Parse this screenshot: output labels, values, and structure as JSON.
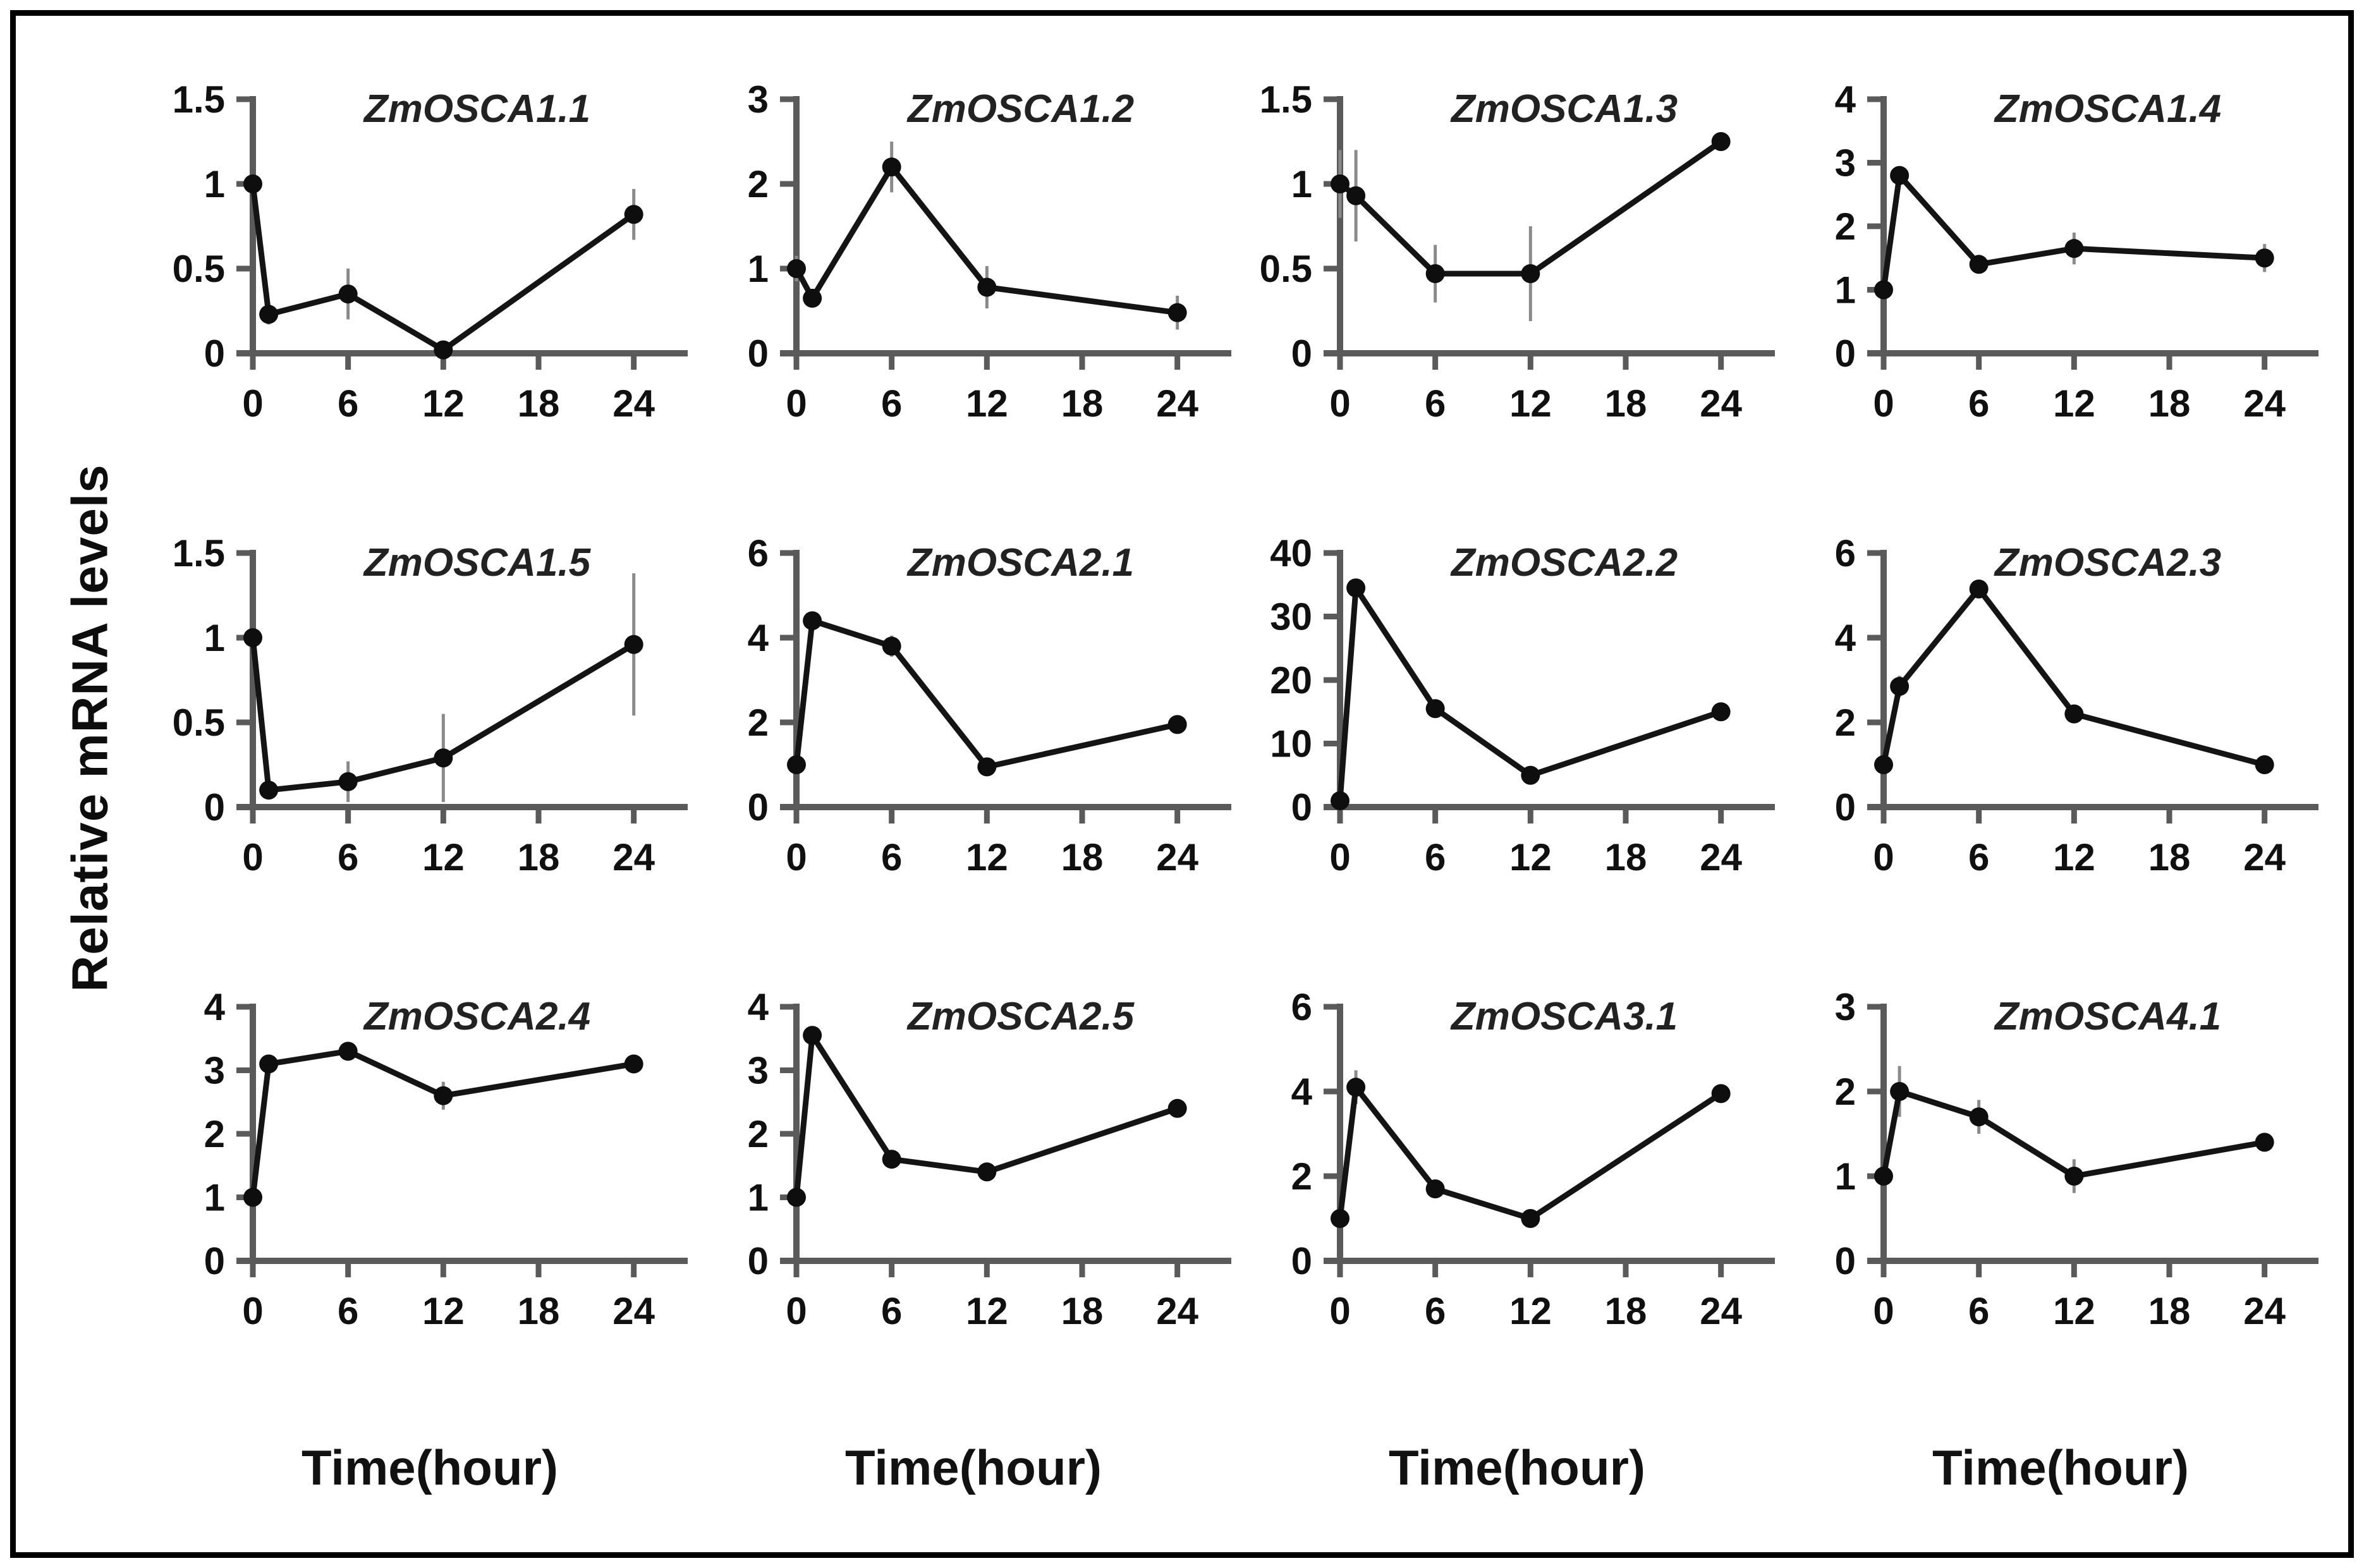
{
  "figure": {
    "ylabel": "Relative mRNA levels",
    "xlabel": "Time(hour)"
  },
  "style": {
    "axis_color": "#5a5a5a",
    "line_color": "#141414",
    "marker_color": "#0e0e0e",
    "error_color": "#8a8a8a",
    "background": "#ffffff",
    "frame_border": "#000000"
  },
  "chart_data": [
    {
      "type": "line",
      "title": "ZmOSCA1.1",
      "xlabel": "Time(hour)",
      "ylabel": "Relative mRNA levels",
      "x": [
        0,
        1,
        6,
        12,
        24
      ],
      "values": [
        1.0,
        0.23,
        0.35,
        0.02,
        0.82
      ],
      "errors": [
        0.04,
        0.06,
        0.15,
        0.02,
        0.15
      ],
      "x_ticks": [
        0,
        6,
        12,
        18,
        24
      ],
      "xlim": [
        0,
        27
      ],
      "yticks": [
        0,
        0.5,
        1,
        1.5
      ],
      "ylim": [
        0,
        1.5
      ],
      "grid": false,
      "legend": false
    },
    {
      "type": "line",
      "title": "ZmOSCA1.2",
      "xlabel": "Time(hour)",
      "ylabel": "Relative mRNA levels",
      "x": [
        0,
        1,
        6,
        12,
        24
      ],
      "values": [
        1.0,
        0.65,
        2.2,
        0.78,
        0.48
      ],
      "errors": [
        0.15,
        0.1,
        0.3,
        0.25,
        0.2
      ],
      "x_ticks": [
        0,
        6,
        12,
        18,
        24
      ],
      "xlim": [
        0,
        27
      ],
      "yticks": [
        0,
        1,
        2,
        3
      ],
      "ylim": [
        0,
        3
      ],
      "grid": false,
      "legend": false
    },
    {
      "type": "line",
      "title": "ZmOSCA1.3",
      "xlabel": "Time(hour)",
      "ylabel": "Relative mRNA levels",
      "x": [
        0,
        1,
        6,
        12,
        24
      ],
      "values": [
        1.0,
        0.93,
        0.47,
        0.47,
        1.25
      ],
      "errors": [
        0.2,
        0.27,
        0.17,
        0.28,
        0.05
      ],
      "x_ticks": [
        0,
        6,
        12,
        18,
        24
      ],
      "xlim": [
        0,
        27
      ],
      "yticks": [
        0,
        0.5,
        1,
        1.5
      ],
      "ylim": [
        0,
        1.5
      ],
      "grid": false,
      "legend": false
    },
    {
      "type": "line",
      "title": "ZmOSCA1.4",
      "xlabel": "Time(hour)",
      "ylabel": "Relative mRNA levels",
      "x": [
        0,
        1,
        6,
        12,
        24
      ],
      "values": [
        1.0,
        2.8,
        1.4,
        1.65,
        1.5
      ],
      "errors": [
        0.05,
        0.1,
        0.12,
        0.25,
        0.22
      ],
      "x_ticks": [
        0,
        6,
        12,
        18,
        24
      ],
      "xlim": [
        0,
        27
      ],
      "yticks": [
        0,
        1,
        2,
        3,
        4
      ],
      "ylim": [
        0,
        4
      ],
      "grid": false,
      "legend": false
    },
    {
      "type": "line",
      "title": "ZmOSCA1.5",
      "xlabel": "Time(hour)",
      "ylabel": "Relative mRNA levels",
      "x": [
        0,
        1,
        6,
        12,
        24
      ],
      "values": [
        1.0,
        0.1,
        0.15,
        0.29,
        0.96
      ],
      "errors": [
        0.03,
        0.05,
        0.12,
        0.26,
        0.42
      ],
      "x_ticks": [
        0,
        6,
        12,
        18,
        24
      ],
      "xlim": [
        0,
        27
      ],
      "yticks": [
        0,
        0.5,
        1,
        1.5
      ],
      "ylim": [
        0,
        1.5
      ],
      "grid": false,
      "legend": false
    },
    {
      "type": "line",
      "title": "ZmOSCA2.1",
      "xlabel": "Time(hour)",
      "ylabel": "Relative mRNA levels",
      "x": [
        0,
        1,
        6,
        12,
        24
      ],
      "values": [
        1.0,
        4.4,
        3.8,
        0.95,
        1.95
      ],
      "errors": [
        0.05,
        0.15,
        0.25,
        0.1,
        0.1
      ],
      "x_ticks": [
        0,
        6,
        12,
        18,
        24
      ],
      "xlim": [
        0,
        27
      ],
      "yticks": [
        0,
        2,
        4,
        6
      ],
      "ylim": [
        0,
        6
      ],
      "grid": false,
      "legend": false
    },
    {
      "type": "line",
      "title": "ZmOSCA2.2",
      "xlabel": "Time(hour)",
      "ylabel": "Relative mRNA levels",
      "x": [
        0,
        1,
        6,
        12,
        24
      ],
      "values": [
        1.0,
        34.5,
        15.5,
        5.0,
        15.0
      ],
      "errors": [
        0.5,
        1.2,
        1.0,
        0.8,
        0.8
      ],
      "x_ticks": [
        0,
        6,
        12,
        18,
        24
      ],
      "xlim": [
        0,
        27
      ],
      "yticks": [
        0,
        10,
        20,
        30,
        40
      ],
      "ylim": [
        0,
        40
      ],
      "grid": false,
      "legend": false
    },
    {
      "type": "line",
      "title": "ZmOSCA2.3",
      "xlabel": "Time(hour)",
      "ylabel": "Relative mRNA levels",
      "x": [
        0,
        1,
        6,
        12,
        24
      ],
      "values": [
        1.0,
        2.85,
        5.15,
        2.2,
        1.0
      ],
      "errors": [
        0.2,
        0.25,
        0.1,
        0.12,
        0.12
      ],
      "x_ticks": [
        0,
        6,
        12,
        18,
        24
      ],
      "xlim": [
        0,
        27
      ],
      "yticks": [
        0,
        2,
        4,
        6
      ],
      "ylim": [
        0,
        6
      ],
      "grid": false,
      "legend": false
    },
    {
      "type": "line",
      "title": "ZmOSCA2.4",
      "xlabel": "Time(hour)",
      "ylabel": "Relative mRNA levels",
      "x": [
        0,
        1,
        6,
        12,
        24
      ],
      "values": [
        1.0,
        3.1,
        3.3,
        2.6,
        3.1
      ],
      "errors": [
        0.08,
        0.1,
        0.12,
        0.22,
        0.08
      ],
      "x_ticks": [
        0,
        6,
        12,
        18,
        24
      ],
      "xlim": [
        0,
        27
      ],
      "yticks": [
        0,
        1,
        2,
        3,
        4
      ],
      "ylim": [
        0,
        4
      ],
      "grid": false,
      "legend": false
    },
    {
      "type": "line",
      "title": "ZmOSCA2.5",
      "xlabel": "Time(hour)",
      "ylabel": "Relative mRNA levels",
      "x": [
        0,
        1,
        6,
        12,
        24
      ],
      "values": [
        1.0,
        3.55,
        1.6,
        1.4,
        2.4
      ],
      "errors": [
        0.08,
        0.12,
        0.1,
        0.08,
        0.1
      ],
      "x_ticks": [
        0,
        6,
        12,
        18,
        24
      ],
      "xlim": [
        0,
        27
      ],
      "yticks": [
        0,
        1,
        2,
        3,
        4
      ],
      "ylim": [
        0,
        4
      ],
      "grid": false,
      "legend": false
    },
    {
      "type": "line",
      "title": "ZmOSCA3.1",
      "xlabel": "Time(hour)",
      "ylabel": "Relative mRNA levels",
      "x": [
        0,
        1,
        6,
        12,
        24
      ],
      "values": [
        1.0,
        4.1,
        1.7,
        1.0,
        3.95
      ],
      "errors": [
        0.1,
        0.4,
        0.18,
        0.08,
        0.1
      ],
      "x_ticks": [
        0,
        6,
        12,
        18,
        24
      ],
      "xlim": [
        0,
        27
      ],
      "yticks": [
        0,
        2,
        4,
        6
      ],
      "ylim": [
        0,
        6
      ],
      "grid": false,
      "legend": false
    },
    {
      "type": "line",
      "title": "ZmOSCA4.1",
      "xlabel": "Time(hour)",
      "ylabel": "Relative mRNA levels",
      "x": [
        0,
        1,
        6,
        12,
        24
      ],
      "values": [
        1.0,
        2.0,
        1.7,
        1.0,
        1.4
      ],
      "errors": [
        0.08,
        0.3,
        0.2,
        0.2,
        0.06
      ],
      "x_ticks": [
        0,
        6,
        12,
        18,
        24
      ],
      "xlim": [
        0,
        27
      ],
      "yticks": [
        0,
        1,
        2,
        3
      ],
      "ylim": [
        0,
        3
      ],
      "grid": false,
      "legend": false
    }
  ]
}
